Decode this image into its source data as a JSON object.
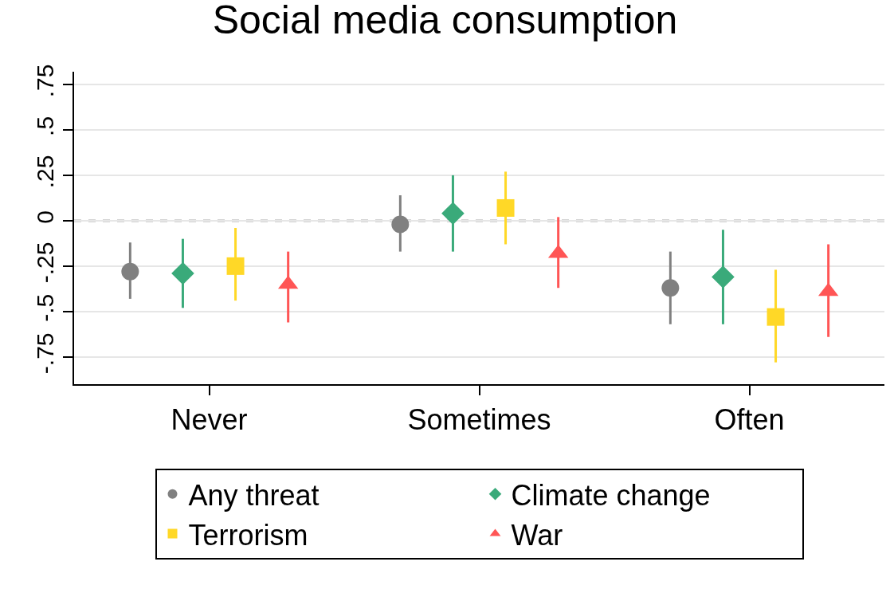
{
  "chart_data": {
    "type": "scatter",
    "title": "Social media consumption",
    "categories": [
      "Never",
      "Sometimes",
      "Often"
    ],
    "series": [
      {
        "name": "Any threat",
        "color": "#808080",
        "marker": "circle",
        "values": [
          -0.28,
          -0.02,
          -0.37
        ],
        "errors": [
          [
            -0.43,
            -0.12
          ],
          [
            -0.17,
            0.14
          ],
          [
            -0.57,
            -0.17
          ]
        ]
      },
      {
        "name": "Climate change",
        "color": "#3aaa7a",
        "marker": "diamond",
        "values": [
          -0.29,
          0.04,
          -0.31
        ],
        "errors": [
          [
            -0.48,
            -0.1
          ],
          [
            -0.17,
            0.25
          ],
          [
            -0.57,
            -0.05
          ]
        ]
      },
      {
        "name": "Terrorism",
        "color": "#ffd827",
        "marker": "square",
        "values": [
          -0.25,
          0.07,
          -0.53
        ],
        "errors": [
          [
            -0.44,
            -0.04
          ],
          [
            -0.13,
            0.27
          ],
          [
            -0.78,
            -0.27
          ]
        ]
      },
      {
        "name": "War",
        "color": "#ff5555",
        "marker": "triangle",
        "values": [
          -0.35,
          -0.18,
          -0.39
        ],
        "errors": [
          [
            -0.56,
            -0.17
          ],
          [
            -0.37,
            0.02
          ],
          [
            -0.64,
            -0.13
          ]
        ]
      }
    ],
    "ylim": [
      -0.9,
      0.82
    ],
    "yticks": [
      {
        "value": -0.75,
        "label": "-.75"
      },
      {
        "value": -0.5,
        "label": "-.5"
      },
      {
        "value": -0.25,
        "label": "-.25"
      },
      0,
      {
        "value": 0.25,
        "label": ".25"
      },
      {
        "value": 0.5,
        "label": ".5"
      },
      {
        "value": 0.75,
        "label": ".75"
      }
    ],
    "grid": "y",
    "legend": "bottom",
    "ref_lines": [
      {
        "axis": "y",
        "value": 0,
        "color": "#aaaaaa",
        "line_style": "dashed"
      }
    ]
  }
}
